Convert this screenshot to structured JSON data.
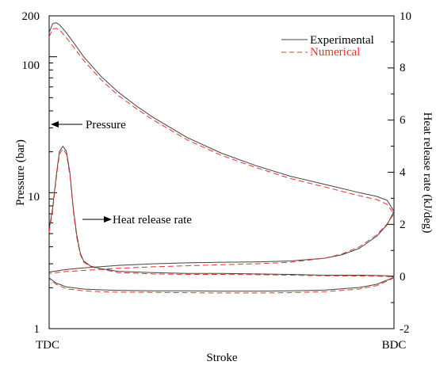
{
  "chart_data": {
    "type": "line",
    "title": "",
    "xlabel": "Stroke",
    "ylabel": "Pressure (bar)",
    "y2label": "Heat release rate (kJ/deg)",
    "x_tick_labels": [
      "TDC",
      "BDC"
    ],
    "ylim": [
      1,
      200
    ],
    "yscale": "log",
    "y_tick_labels": [
      "1",
      "10",
      "100",
      "200"
    ],
    "y2lim": [
      -2,
      10
    ],
    "y2_tick_labels": [
      "-2",
      "0",
      "2",
      "4",
      "6",
      "8",
      "10"
    ],
    "grid": false,
    "legend_position": "top-right",
    "colors": {
      "experimental": "#444444",
      "numerical": "#e8332a"
    },
    "annotations": [
      {
        "text": "Pressure",
        "arrow": "left"
      },
      {
        "text": "Heat release rate",
        "arrow": "right"
      }
    ],
    "series": [
      {
        "name": "Experimental",
        "axis": "pressure",
        "x": [
          0,
          0.01,
          0.02,
          0.03,
          0.05,
          0.08,
          0.1,
          0.15,
          0.2,
          0.25,
          0.3,
          0.4,
          0.5,
          0.6,
          0.7,
          0.8,
          0.9,
          0.95,
          0.98,
          1.0,
          0.98,
          0.95,
          0.9,
          0.85,
          0.8,
          0.7,
          0.6,
          0.5,
          0.4,
          0.3,
          0.2,
          0.15,
          0.1,
          0.08,
          0.05,
          0.03,
          0.02,
          0.01,
          0
        ],
        "y": [
          150,
          175,
          178,
          172,
          150,
          118,
          100,
          72,
          55,
          44,
          36,
          25.5,
          19.5,
          15.8,
          13.2,
          11.5,
          10.0,
          9.4,
          8.8,
          7.3,
          5.8,
          4.8,
          3.9,
          3.5,
          3.3,
          3.15,
          3.1,
          3.08,
          3.05,
          3.0,
          2.92,
          2.86,
          2.8,
          2.77,
          2.72,
          2.68,
          2.65,
          2.63,
          2.6
        ]
      },
      {
        "name": "Numerical",
        "axis": "pressure",
        "x": [
          0,
          0.01,
          0.02,
          0.03,
          0.05,
          0.08,
          0.1,
          0.15,
          0.2,
          0.25,
          0.3,
          0.4,
          0.5,
          0.6,
          0.7,
          0.8,
          0.9,
          0.95,
          0.98,
          1.0,
          0.98,
          0.95,
          0.9,
          0.85,
          0.8,
          0.7,
          0.6,
          0.5,
          0.4,
          0.3,
          0.2,
          0.15,
          0.1,
          0.08,
          0.05,
          0.03,
          0.02,
          0.01,
          0
        ],
        "y": [
          140,
          160,
          162,
          158,
          138,
          110,
          94,
          68,
          52,
          42,
          34.5,
          24.5,
          18.8,
          15.3,
          12.7,
          11.0,
          9.5,
          8.9,
          8.2,
          7.0,
          5.9,
          4.9,
          4.0,
          3.55,
          3.3,
          3.08,
          3.0,
          2.95,
          2.9,
          2.85,
          2.78,
          2.73,
          2.68,
          2.66,
          2.63,
          2.6,
          2.58,
          2.56,
          2.55
        ]
      },
      {
        "name": "Experimental",
        "axis": "heat_release",
        "x": [
          0,
          0.01,
          0.02,
          0.03,
          0.04,
          0.05,
          0.06,
          0.07,
          0.08,
          0.09,
          0.1,
          0.12,
          0.15,
          0.2,
          0.3,
          0.4,
          0.5,
          0.6,
          0.7,
          0.8,
          0.9,
          0.95,
          1.0,
          1.0,
          0.95,
          0.9,
          0.8,
          0.7,
          0.6,
          0.5,
          0.4,
          0.3,
          0.2,
          0.15,
          0.1,
          0.05,
          0.02,
          0
        ],
        "y": [
          1.8,
          2.6,
          3.8,
          4.8,
          5.0,
          4.8,
          4.0,
          2.6,
          1.6,
          0.9,
          0.6,
          0.4,
          0.3,
          0.2,
          0.15,
          0.12,
          0.12,
          0.1,
          0.08,
          0.05,
          0.05,
          0.04,
          0.02,
          -0.03,
          -0.3,
          -0.42,
          -0.52,
          -0.55,
          -0.56,
          -0.56,
          -0.55,
          -0.55,
          -0.53,
          -0.51,
          -0.48,
          -0.4,
          -0.25,
          -0.05
        ]
      },
      {
        "name": "Numerical",
        "axis": "heat_release",
        "x": [
          0,
          0.01,
          0.02,
          0.03,
          0.04,
          0.05,
          0.06,
          0.07,
          0.08,
          0.09,
          0.1,
          0.12,
          0.15,
          0.2,
          0.3,
          0.4,
          0.5,
          0.6,
          0.7,
          0.8,
          0.9,
          0.95,
          1.0,
          1.0,
          0.95,
          0.9,
          0.8,
          0.7,
          0.6,
          0.5,
          0.4,
          0.3,
          0.2,
          0.15,
          0.1,
          0.05,
          0.02,
          0
        ],
        "y": [
          1.7,
          2.5,
          3.7,
          4.7,
          4.9,
          4.7,
          3.9,
          2.5,
          1.5,
          0.85,
          0.55,
          0.38,
          0.28,
          0.15,
          0.1,
          0.08,
          0.08,
          0.07,
          0.05,
          0.03,
          0.02,
          0.01,
          0.0,
          -0.05,
          -0.35,
          -0.48,
          -0.58,
          -0.62,
          -0.63,
          -0.63,
          -0.62,
          -0.61,
          -0.6,
          -0.58,
          -0.55,
          -0.47,
          -0.3,
          -0.1
        ]
      }
    ]
  }
}
